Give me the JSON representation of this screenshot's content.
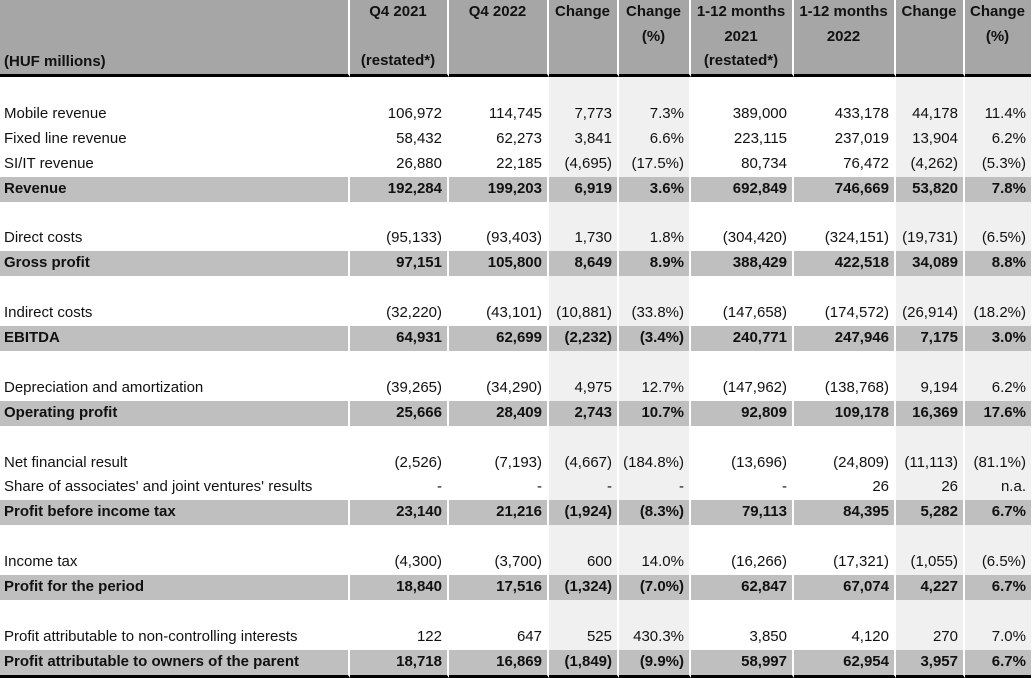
{
  "header": {
    "unit_label": "(HUF millions)",
    "columns": [
      [
        "Q4 2021",
        "",
        "(restated*)"
      ],
      [
        "Q4 2022",
        "",
        ""
      ],
      [
        "Change",
        "",
        ""
      ],
      [
        "Change",
        "(%)",
        ""
      ],
      [
        "1-12 months",
        "2021",
        "(restated*)"
      ],
      [
        "1-12 months",
        "2022",
        ""
      ],
      [
        "Change",
        "",
        ""
      ],
      [
        "Change",
        "(%)",
        ""
      ]
    ]
  },
  "rows": [
    {
      "blank": true
    },
    {
      "label": "Mobile revenue",
      "values": [
        "106,972",
        "114,745",
        "7,773",
        "7.3%",
        "389,000",
        "433,178",
        "44,178",
        "11.4%"
      ]
    },
    {
      "label": "Fixed line revenue",
      "values": [
        "58,432",
        "62,273",
        "3,841",
        "6.6%",
        "223,115",
        "237,019",
        "13,904",
        "6.2%"
      ]
    },
    {
      "label": "SI/IT revenue",
      "values": [
        "26,880",
        "22,185",
        "(4,695)",
        "(17.5%)",
        "80,734",
        "76,472",
        "(4,262)",
        "(5.3%)"
      ]
    },
    {
      "label": "Revenue",
      "bold": true,
      "values": [
        "192,284",
        "199,203",
        "6,919",
        "3.6%",
        "692,849",
        "746,669",
        "53,820",
        "7.8%"
      ]
    },
    {
      "blank": true
    },
    {
      "label": "Direct costs",
      "values": [
        "(95,133)",
        "(93,403)",
        "1,730",
        "1.8%",
        "(304,420)",
        "(324,151)",
        "(19,731)",
        "(6.5%)"
      ]
    },
    {
      "label": "Gross profit",
      "bold": true,
      "values": [
        "97,151",
        "105,800",
        "8,649",
        "8.9%",
        "388,429",
        "422,518",
        "34,089",
        "8.8%"
      ]
    },
    {
      "blank": true
    },
    {
      "label": "Indirect costs",
      "values": [
        "(32,220)",
        "(43,101)",
        "(10,881)",
        "(33.8%)",
        "(147,658)",
        "(174,572)",
        "(26,914)",
        "(18.2%)"
      ]
    },
    {
      "label": "EBITDA",
      "bold": true,
      "values": [
        "64,931",
        "62,699",
        "(2,232)",
        "(3.4%)",
        "240,771",
        "247,946",
        "7,175",
        "3.0%"
      ]
    },
    {
      "blank": true
    },
    {
      "label": "Depreciation and amortization",
      "values": [
        "(39,265)",
        "(34,290)",
        "4,975",
        "12.7%",
        "(147,962)",
        "(138,768)",
        "9,194",
        "6.2%"
      ]
    },
    {
      "label": "Operating profit",
      "bold": true,
      "values": [
        "25,666",
        "28,409",
        "2,743",
        "10.7%",
        "92,809",
        "109,178",
        "16,369",
        "17.6%"
      ]
    },
    {
      "blank": true
    },
    {
      "label": "Net financial result",
      "values": [
        "(2,526)",
        "(7,193)",
        "(4,667)",
        "(184.8%)",
        "(13,696)",
        "(24,809)",
        "(11,113)",
        "(81.1%)"
      ]
    },
    {
      "label": "Share of associates' and joint ventures' results",
      "values": [
        "-",
        "-",
        "-",
        "-",
        "-",
        "26",
        "26",
        "n.a."
      ]
    },
    {
      "label": "Profit before income tax",
      "bold": true,
      "values": [
        "23,140",
        "21,216",
        "(1,924)",
        "(8.3%)",
        "79,113",
        "84,395",
        "5,282",
        "6.7%"
      ]
    },
    {
      "blank": true
    },
    {
      "label": "Income tax",
      "values": [
        "(4,300)",
        "(3,700)",
        "600",
        "14.0%",
        "(16,266)",
        "(17,321)",
        "(1,055)",
        "(6.5%)"
      ]
    },
    {
      "label": "Profit for the period",
      "bold": true,
      "values": [
        "18,840",
        "17,516",
        "(1,324)",
        "(7.0%)",
        "62,847",
        "67,074",
        "4,227",
        "6.7%"
      ]
    },
    {
      "blank": true
    },
    {
      "label": "Profit attributable to non-controlling interests",
      "values": [
        "122",
        "647",
        "525",
        "430.3%",
        "3,850",
        "4,120",
        "270",
        "7.0%"
      ]
    },
    {
      "label": "Profit attributable to owners of the parent",
      "bold": true,
      "values": [
        "18,718",
        "16,869",
        "(1,849)",
        "(9.9%)",
        "58,997",
        "62,954",
        "3,957",
        "6.7%"
      ]
    }
  ],
  "colors": {
    "header_bg": "#a6a6a6",
    "total_row_bg": "#bfbfbf",
    "change_col_bg": "#f0f0f0"
  }
}
